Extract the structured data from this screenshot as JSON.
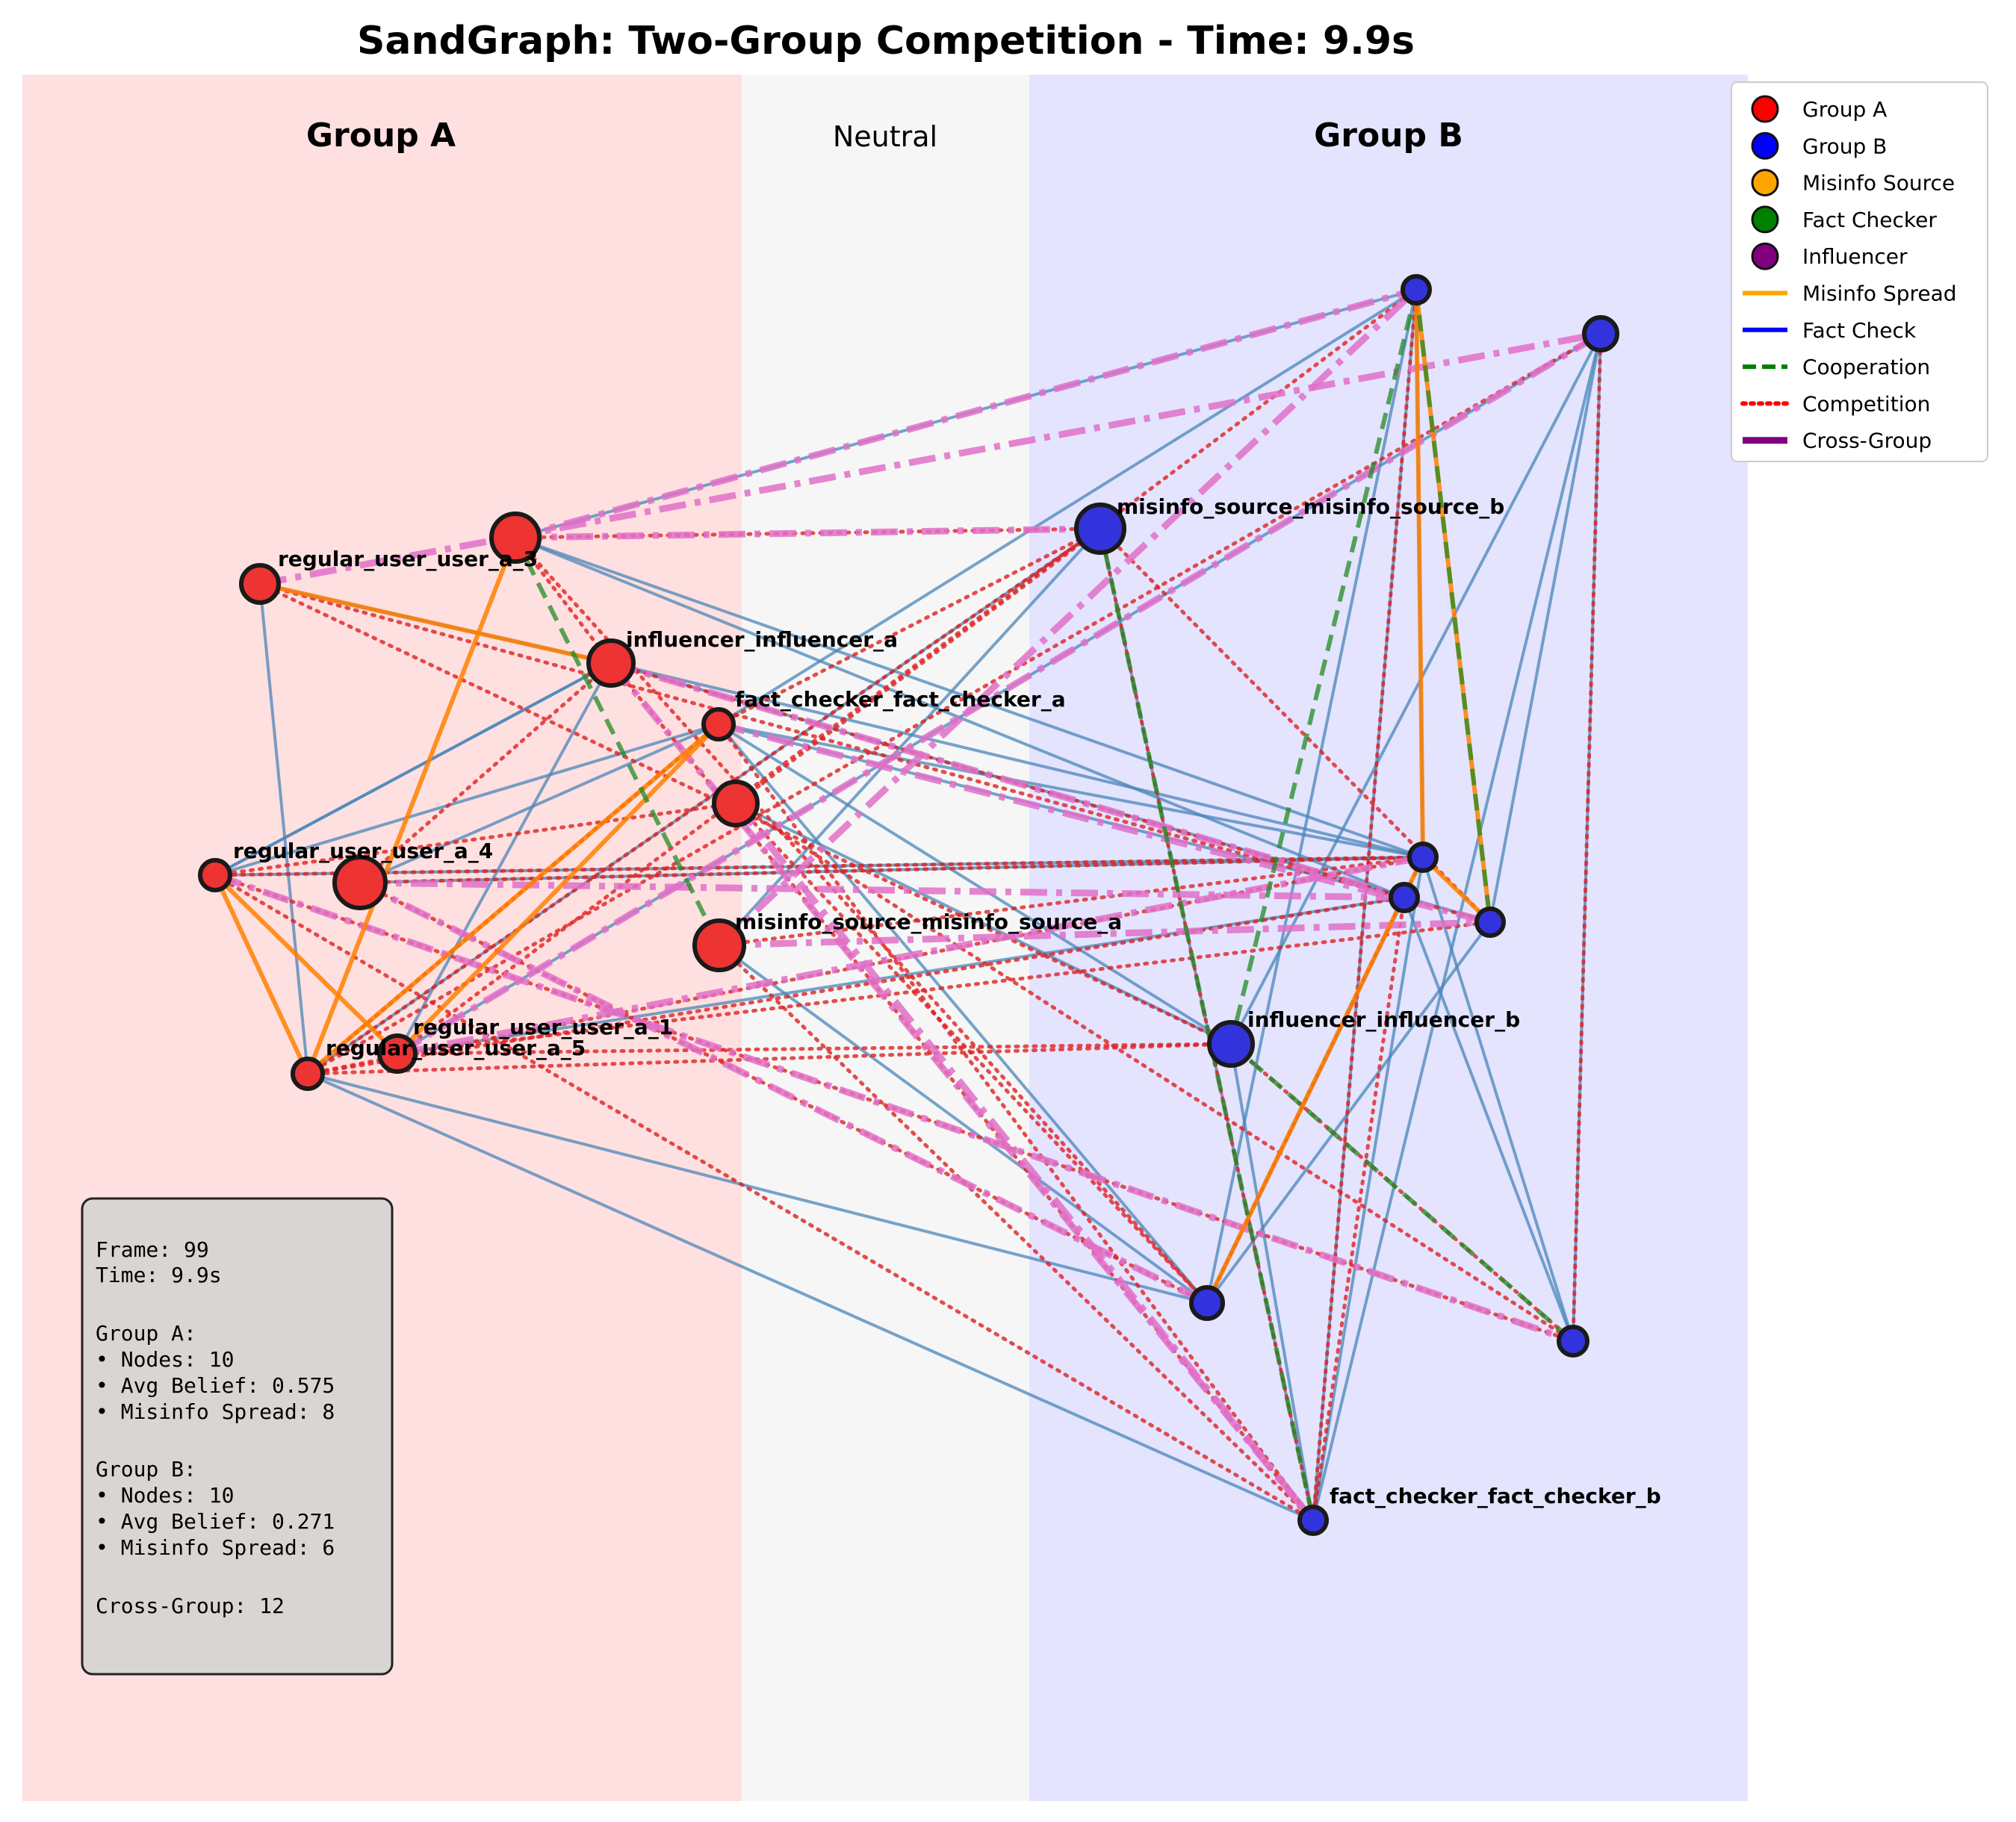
{
  "title": "SandGraph: Two-Group Competition - Time: 9.9s",
  "regions": {
    "group_a": "Group A",
    "neutral": "Neutral",
    "group_b": "Group B"
  },
  "colors": {
    "group_a_bg": "#ffe0e0",
    "neutral_bg": "#f6f6f6",
    "group_b_bg": "#e4e4ff",
    "group_a_node": "#ee3333",
    "group_b_node": "#3333dd",
    "misinfo_spread": "#ff8000",
    "fact_check": "#0000ff",
    "cooperation": "#228b22",
    "competition": "#dd2222",
    "influencer": "#800080",
    "cross_group": "#e070c8",
    "connection": "#4a86b8"
  },
  "node_labels": {
    "user_a_3": "regular_user_user_a_3",
    "influencer_a": "influencer_influencer_a",
    "fact_checker_a": "fact_checker_fact_checker_a",
    "user_a_4": "regular_user_user_a_4",
    "misinfo_a": "misinfo_source_misinfo_source_a",
    "user_a_1": "regular_user_user_a_1",
    "user_a_5": "regular_user_user_a_5",
    "misinfo_b": "misinfo_source_misinfo_source_b",
    "influencer_b": "influencer_influencer_b",
    "fact_checker_b": "fact_checker_fact_checker_b"
  },
  "legend": [
    {
      "label": "Group A",
      "icon": "circle",
      "color": "#ff0000"
    },
    {
      "label": "Group B",
      "icon": "circle",
      "color": "#0000ff"
    },
    {
      "label": "Misinfo Source",
      "icon": "circle",
      "color": "#ffa500"
    },
    {
      "label": "Fact Checker",
      "icon": "circle",
      "color": "#008000"
    },
    {
      "label": "Influencer",
      "icon": "circle",
      "color": "#800080"
    },
    {
      "label": "Misinfo Spread",
      "icon": "line-solid",
      "color": "#ffa500"
    },
    {
      "label": "Fact Check",
      "icon": "line-solid",
      "color": "#0000ff"
    },
    {
      "label": "Cooperation",
      "icon": "line-dashed",
      "color": "#008000"
    },
    {
      "label": "Competition",
      "icon": "line-dotted",
      "color": "#ff0000"
    },
    {
      "label": "Cross-Group",
      "icon": "line-thick",
      "color": "#800080"
    }
  ],
  "stats": {
    "frame": "Frame: 99",
    "time": "Time: 9.9s",
    "group_a_header": "Group A:",
    "group_a_nodes": "• Nodes: 10",
    "group_a_belief": "• Avg Belief: 0.575",
    "group_a_misinfo": "• Misinfo Spread: 8",
    "group_b_header": "Group B:",
    "group_b_nodes": "• Nodes: 10",
    "group_b_belief": "• Avg Belief: 0.271",
    "group_b_misinfo": "• Misinfo Spread: 6",
    "cross_group": "Cross-Group: 12"
  }
}
